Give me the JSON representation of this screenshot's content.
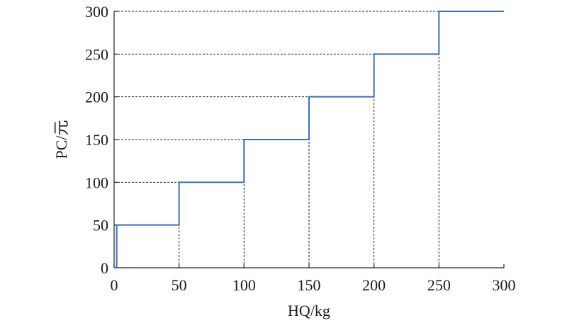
{
  "chart_data": {
    "type": "line",
    "step": "post",
    "xlabel": "HQ/kg",
    "ylabel": "PC/元",
    "xlim": [
      0,
      300
    ],
    "ylim": [
      0,
      300
    ],
    "xticks": [
      0,
      50,
      100,
      150,
      200,
      250,
      300
    ],
    "yticks": [
      0,
      50,
      100,
      150,
      200,
      250,
      300
    ],
    "grid": "dashed reference lines at step corners",
    "series": [
      {
        "color": "#3d6eb4",
        "x": [
          0,
          2,
          50,
          100,
          150,
          200,
          250,
          300
        ],
        "y": [
          0,
          50,
          100,
          150,
          200,
          250,
          300,
          300
        ]
      }
    ]
  }
}
